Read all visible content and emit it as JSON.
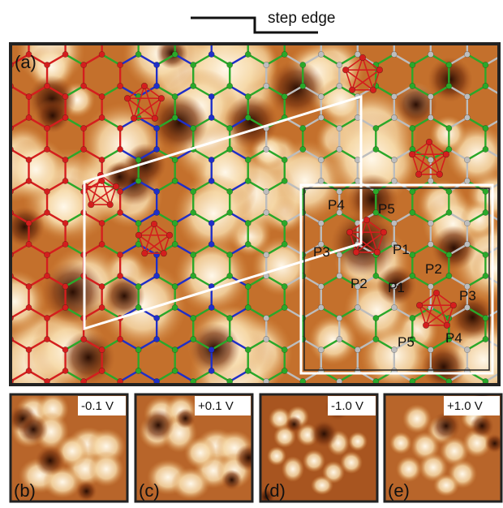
{
  "legend": {
    "label": "step edge"
  },
  "main_panel": {
    "letter": "(a)",
    "site_labels": {
      "left": [
        "P4",
        "P5",
        "P3",
        "P1",
        "P2"
      ],
      "right": [
        "P2",
        "P1",
        "P3",
        "P5",
        "P4"
      ]
    }
  },
  "small_panels": [
    {
      "letter": "(b)",
      "bias": "-0.1 V"
    },
    {
      "letter": "(c)",
      "bias": "+0.1 V"
    },
    {
      "letter": "(d)",
      "bias": "-1.0 V"
    },
    {
      "letter": "(e)",
      "bias": "+1.0 V"
    }
  ],
  "colors": {
    "stm_dark": "#3a1505",
    "stm_mid": "#c4702c",
    "stm_light": "#fff6e6",
    "atom_red": "#d41e1e",
    "atom_blue": "#1f2fc8",
    "atom_green": "#2aa82a",
    "atom_gray": "#bdbdbd",
    "frame": "#222222",
    "outline": "#ffffff"
  }
}
